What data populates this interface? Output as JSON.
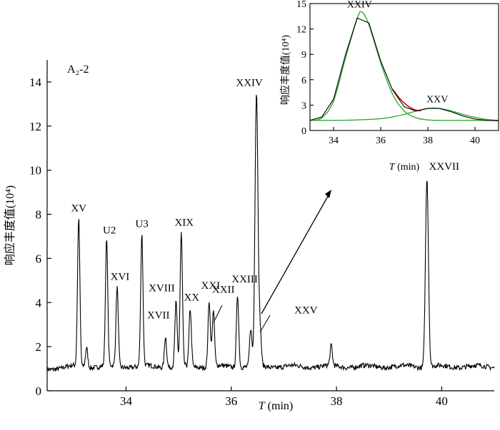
{
  "main": {
    "sample_label": "A₂-2",
    "ylabel": "响应丰度值(10⁴)",
    "xlabel_var": "T",
    "xlabel_unit": " (min)"
  },
  "inset": {
    "ylabel": "响应丰度值(10⁴)",
    "xlabel_var": "T",
    "xlabel_unit": " (min)"
  },
  "chart_data": [
    {
      "type": "line",
      "title": "",
      "sample_label": "A₂-2",
      "xlabel": "T (min)",
      "ylabel": "响应丰度值(10⁴)",
      "xlim": [
        32.5,
        41.0
      ],
      "ylim": [
        0,
        15
      ],
      "xticks": [
        34,
        36,
        38,
        40
      ],
      "yticks": [
        0,
        2,
        4,
        6,
        8,
        10,
        12,
        14
      ],
      "baseline": 1.1,
      "peaks": [
        {
          "label": "XV",
          "x": 33.1,
          "y": 7.8
        },
        {
          "label": "",
          "x": 33.25,
          "y": 2.0
        },
        {
          "label": "U2",
          "x": 33.63,
          "y": 6.8
        },
        {
          "label": "XVI",
          "x": 33.83,
          "y": 4.7
        },
        {
          "label": "U3",
          "x": 34.3,
          "y": 7.1
        },
        {
          "label": "XVII",
          "x": 34.75,
          "y": 2.5
        },
        {
          "label": "XVIII",
          "x": 34.95,
          "y": 4.0
        },
        {
          "label": "XIX",
          "x": 35.05,
          "y": 7.1
        },
        {
          "label": "XX",
          "x": 35.22,
          "y": 3.7
        },
        {
          "label": "XXI",
          "x": 35.58,
          "y": 4.1
        },
        {
          "label": "XXII",
          "x": 35.66,
          "y": 3.6
        },
        {
          "label": "XXIII",
          "x": 36.12,
          "y": 4.4
        },
        {
          "label": "",
          "x": 36.37,
          "y": 2.8
        },
        {
          "label": "XXIV",
          "x": 36.48,
          "y": 13.5
        },
        {
          "label": "XXV",
          "x": 36.55,
          "y": 2.6
        },
        {
          "label": "",
          "x": 37.9,
          "y": 2.0
        },
        {
          "label": "XXVII",
          "x": 39.72,
          "y": 9.7
        }
      ]
    },
    {
      "type": "line",
      "title": "",
      "xlabel": "T (min)",
      "ylabel": "响应丰度值(10⁴)",
      "xlim": [
        33,
        41
      ],
      "ylim": [
        0,
        15
      ],
      "xticks": [
        34,
        36,
        38,
        40
      ],
      "yticks": [
        0,
        3,
        6,
        9,
        12,
        15
      ],
      "series": [
        {
          "color": "#000000",
          "x": [
            33,
            33.5,
            34,
            34.5,
            35,
            35.5,
            36,
            36.5,
            37,
            37.5,
            38,
            38.5,
            39,
            39.5,
            40,
            40.5,
            41
          ],
          "y": [
            1.2,
            1.6,
            3.7,
            8.9,
            13.3,
            12.7,
            8.2,
            4.8,
            2.8,
            2.3,
            2.6,
            2.6,
            2.2,
            1.7,
            1.35,
            1.2,
            1.15
          ]
        },
        {
          "color": "#cc0000",
          "x": [
            36.5,
            36.8,
            37.1,
            37.4,
            37.7
          ],
          "y": [
            4.9,
            3.8,
            3.0,
            2.5,
            2.3
          ]
        },
        {
          "color": "#33aa33",
          "x": [
            33,
            33.5,
            34,
            34.5,
            35,
            35.2,
            35.5,
            36,
            36.5,
            37,
            37.5,
            38,
            38.5,
            39,
            40,
            41
          ],
          "y": [
            1.2,
            1.5,
            3.5,
            8.5,
            13.2,
            14.0,
            12.5,
            8.0,
            4.3,
            2.3,
            1.5,
            1.25,
            1.2,
            1.2,
            1.2,
            1.2
          ]
        },
        {
          "color": "#33aa33",
          "x": [
            33,
            34,
            35,
            36,
            36.5,
            37,
            37.5,
            38,
            38.3,
            38.6,
            39,
            39.5,
            40,
            40.5,
            41
          ],
          "y": [
            1.2,
            1.2,
            1.25,
            1.4,
            1.6,
            1.9,
            2.3,
            2.6,
            2.65,
            2.55,
            2.3,
            1.9,
            1.55,
            1.3,
            1.2
          ]
        }
      ],
      "peaks": [
        {
          "label": "XXIV",
          "x": 35.1,
          "y": 14.2
        },
        {
          "label": "XXV",
          "x": 38.4,
          "y": 3.0
        }
      ]
    }
  ]
}
